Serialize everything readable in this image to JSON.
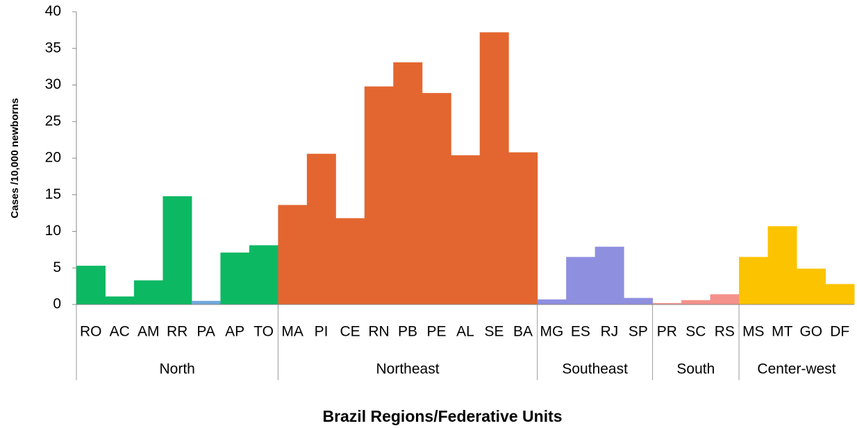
{
  "chart_data": {
    "type": "bar",
    "y_label": "Cases /10,000 newborns",
    "x_label": "Brazil Regions/Federative Units",
    "ylim": [
      0,
      40
    ],
    "yticks": [
      0,
      5,
      10,
      15,
      20,
      25,
      30,
      35,
      40
    ],
    "groups": [
      {
        "name": "North",
        "categories": [
          "RO",
          "AC",
          "AM",
          "RR",
          "PA",
          "AP",
          "TO"
        ],
        "values": [
          5.3,
          1.1,
          3.3,
          14.8,
          0.5,
          7.1,
          8.1
        ],
        "colors": [
          "#0db863",
          "#0db863",
          "#0db863",
          "#0db863",
          "#6fa8dc",
          "#0db863",
          "#0db863"
        ]
      },
      {
        "name": "Northeast",
        "categories": [
          "MA",
          "PI",
          "CE",
          "RN",
          "PB",
          "PE",
          "AL",
          "SE",
          "BA"
        ],
        "values": [
          13.6,
          20.6,
          11.8,
          29.8,
          33.1,
          28.9,
          20.4,
          37.2,
          20.8
        ],
        "colors": [
          "#e36630",
          "#e36630",
          "#e36630",
          "#e36630",
          "#e36630",
          "#e36630",
          "#e36630",
          "#e36630",
          "#e36630"
        ]
      },
      {
        "name": "Southeast",
        "categories": [
          "MG",
          "ES",
          "RJ",
          "SP"
        ],
        "values": [
          0.7,
          6.5,
          7.9,
          0.9
        ],
        "colors": [
          "#8f8fe0",
          "#8f8fe0",
          "#8f8fe0",
          "#8f8fe0"
        ]
      },
      {
        "name": "South",
        "categories": [
          "PR",
          "SC",
          "RS"
        ],
        "values": [
          0.2,
          0.6,
          1.4
        ],
        "colors": [
          "#f4918a",
          "#f4918a",
          "#f4918a"
        ]
      },
      {
        "name": "Center-west",
        "categories": [
          "MS",
          "MT",
          "GO",
          "DF"
        ],
        "values": [
          6.5,
          10.7,
          4.9,
          2.8
        ],
        "colors": [
          "#fbc300",
          "#fbc300",
          "#fbc300",
          "#fbc300"
        ]
      }
    ]
  }
}
